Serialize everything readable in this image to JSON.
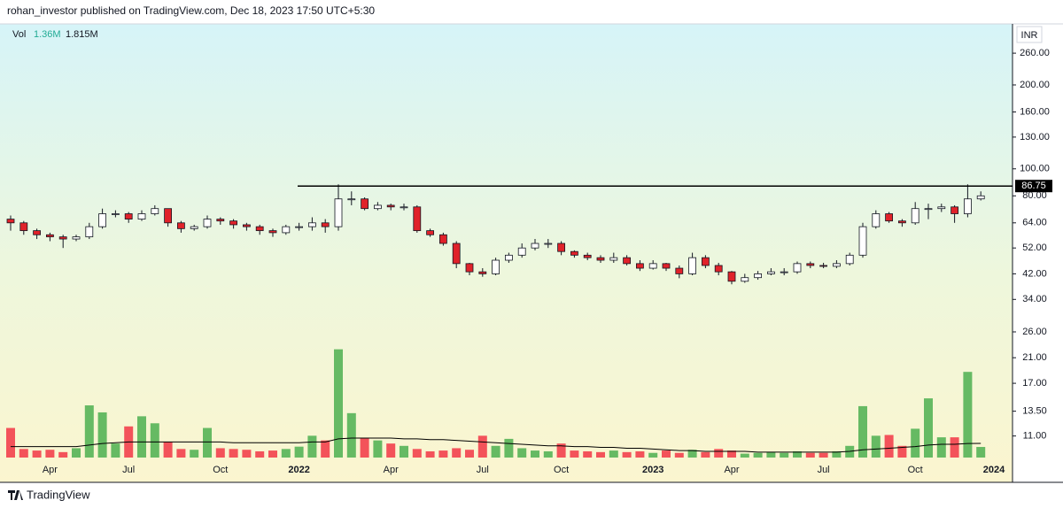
{
  "header": {
    "text": "rohan_investor published on TradingView.com, Dec 18, 2023 17:50 UTC+5:30"
  },
  "footer": {
    "brand": "TradingView"
  },
  "chart_data": {
    "type": "candlestick",
    "currency": "INR",
    "log_scale": true,
    "ylim": [
      7.5,
      324
    ],
    "yticks": [
      {
        "value": 260,
        "label": "260.00"
      },
      {
        "value": 200,
        "label": "200.00"
      },
      {
        "value": 160,
        "label": "160.00"
      },
      {
        "value": 130,
        "label": "130.00"
      },
      {
        "value": 100,
        "label": "100.00"
      },
      {
        "value": 80,
        "label": "80.00"
      },
      {
        "value": 64,
        "label": "64.00"
      },
      {
        "value": 52,
        "label": "52.00"
      },
      {
        "value": 42,
        "label": "42.00"
      },
      {
        "value": 34,
        "label": "34.00"
      },
      {
        "value": 26,
        "label": "26.00"
      },
      {
        "value": 21,
        "label": "21.00"
      },
      {
        "value": 17,
        "label": "17.00"
      },
      {
        "value": 13.5,
        "label": "13.50"
      },
      {
        "value": 11,
        "label": "11.00"
      }
    ],
    "hline": 86.75,
    "up_color": "#ffffff",
    "down_color": "#e0222a",
    "categories": [
      null,
      null,
      null,
      "Apr",
      null,
      null,
      null,
      null,
      null,
      "Jul",
      null,
      null,
      null,
      null,
      null,
      null,
      "Oct",
      null,
      null,
      null,
      null,
      null,
      "2022",
      null,
      null,
      null,
      null,
      null,
      null,
      "Apr",
      null,
      null,
      null,
      null,
      null,
      null,
      "Jul",
      null,
      null,
      null,
      null,
      null,
      "Oct",
      null,
      null,
      null,
      null,
      null,
      null,
      "2023",
      null,
      null,
      null,
      null,
      null,
      "Apr",
      null,
      null,
      null,
      null,
      null,
      null,
      "Jul",
      null,
      null,
      null,
      null,
      null,
      null,
      "Oct",
      null,
      null,
      null,
      null,
      null,
      "2024"
    ],
    "candles": {
      "open": [
        66,
        64,
        60,
        58,
        57,
        56,
        57,
        62,
        69,
        69,
        66,
        69,
        72,
        64,
        61,
        62,
        66,
        65,
        63,
        62,
        60,
        59,
        62,
        62,
        64,
        62,
        78,
        78,
        72,
        74,
        73,
        73,
        60,
        58,
        54,
        45.7,
        42.7,
        42,
        47,
        49,
        52,
        54,
        54,
        50.5,
        49,
        48,
        47,
        48,
        45.7,
        44,
        45.7,
        44,
        42,
        48,
        45,
        42.7,
        39.5,
        40.7,
        42,
        42.7,
        42.7,
        45.7,
        45,
        44.7,
        45.7,
        49,
        62,
        69,
        65,
        64,
        72,
        72,
        73,
        69,
        78,
        null
      ],
      "high": [
        68,
        65,
        61,
        59,
        58,
        58,
        64,
        72,
        71,
        70,
        71,
        74,
        72,
        65,
        63,
        68,
        67,
        66,
        64,
        63,
        61,
        63,
        64,
        67,
        66,
        88,
        83,
        79,
        76,
        75,
        75,
        74,
        61,
        59,
        55,
        46,
        44,
        48,
        50,
        54,
        56,
        56,
        55,
        51,
        50,
        49,
        50,
        49,
        47,
        47,
        46,
        45,
        50,
        49,
        46,
        43,
        42,
        43,
        44,
        44,
        46.5,
        46.5,
        46,
        47,
        50,
        64,
        71,
        70,
        66,
        76,
        75,
        75,
        74,
        88,
        83,
        null
      ],
      "low": [
        60,
        58,
        56,
        55,
        52,
        55,
        56,
        61,
        67,
        64,
        65,
        68,
        62,
        59,
        60,
        61,
        63,
        61,
        60,
        58,
        57,
        58,
        60,
        60,
        59,
        60,
        74,
        71,
        71,
        71,
        71,
        59,
        57,
        53,
        44,
        41.5,
        41,
        41.5,
        46,
        48,
        51,
        52,
        49,
        48,
        47,
        46,
        46,
        45,
        43,
        43.5,
        43,
        40.5,
        41.5,
        44,
        41.5,
        38.5,
        39,
        40,
        41.5,
        41.5,
        42,
        44,
        44,
        44,
        45,
        48,
        61,
        64,
        62,
        63,
        66,
        70,
        64,
        67,
        77,
        null
      ],
      "close": [
        64,
        60,
        58,
        57,
        56,
        57,
        62,
        69,
        69,
        66,
        69,
        72,
        64,
        61,
        62,
        66,
        65,
        63,
        62,
        60,
        59,
        62,
        62,
        64,
        62,
        78,
        78,
        72,
        74,
        73,
        73,
        60,
        58,
        54,
        45.7,
        42.7,
        42,
        47,
        49,
        52,
        54,
        54,
        50.5,
        49,
        48,
        47,
        48,
        45.7,
        44,
        45.7,
        44,
        42,
        48,
        45,
        42.7,
        39.5,
        40.7,
        42,
        42.7,
        42.7,
        45.7,
        45,
        44.7,
        45.7,
        49,
        62,
        69,
        65,
        64,
        72,
        72,
        73,
        69,
        78,
        80,
        null
      ]
    },
    "volume": {
      "name": "Vol",
      "axis": "y2",
      "up_color": "#4caf50",
      "down_color": "#f23645",
      "label": "1.36M",
      "values": [
        3.8,
        1.1,
        0.9,
        1.0,
        0.7,
        1.2,
        6.7,
        5.8,
        1.8,
        4.0,
        5.3,
        4.4,
        2.0,
        1.1,
        1.0,
        3.8,
        1.2,
        1.1,
        1.0,
        0.8,
        0.9,
        1.1,
        1.4,
        2.8,
        2.2,
        13.9,
        5.7,
        2.5,
        2.2,
        1.8,
        1.5,
        1.1,
        0.8,
        0.9,
        1.2,
        1.0,
        2.8,
        1.5,
        2.4,
        1.2,
        0.9,
        0.8,
        1.8,
        0.9,
        0.8,
        0.7,
        0.9,
        0.7,
        0.8,
        0.6,
        0.9,
        0.6,
        1.0,
        0.7,
        1.1,
        0.9,
        0.5,
        0.6,
        0.7,
        0.6,
        0.8,
        0.6,
        0.6,
        0.8,
        1.5,
        6.6,
        2.8,
        2.9,
        1.5,
        3.7,
        7.6,
        2.6,
        2.6,
        11.0,
        1.36,
        null
      ],
      "ma": {
        "color": "#000000",
        "label": "1.815M",
        "values": [
          1.4,
          1.4,
          1.4,
          1.4,
          1.4,
          1.4,
          1.6,
          1.8,
          1.9,
          2.0,
          2.0,
          2.0,
          2.0,
          2.0,
          2.0,
          2.0,
          2.0,
          1.9,
          1.9,
          1.9,
          1.9,
          1.9,
          1.9,
          2.0,
          2.0,
          2.4,
          2.5,
          2.5,
          2.5,
          2.5,
          2.4,
          2.4,
          2.3,
          2.3,
          2.2,
          2.1,
          2.0,
          1.9,
          1.8,
          1.7,
          1.6,
          1.5,
          1.5,
          1.4,
          1.4,
          1.3,
          1.3,
          1.2,
          1.2,
          1.1,
          1.0,
          0.9,
          0.9,
          0.8,
          0.8,
          0.8,
          0.8,
          0.7,
          0.7,
          0.7,
          0.7,
          0.7,
          0.7,
          0.7,
          0.8,
          1.0,
          1.1,
          1.2,
          1.3,
          1.4,
          1.6,
          1.7,
          1.7,
          1.8,
          1.815,
          null
        ]
      }
    },
    "y2lim": [
      0,
      20
    ]
  }
}
